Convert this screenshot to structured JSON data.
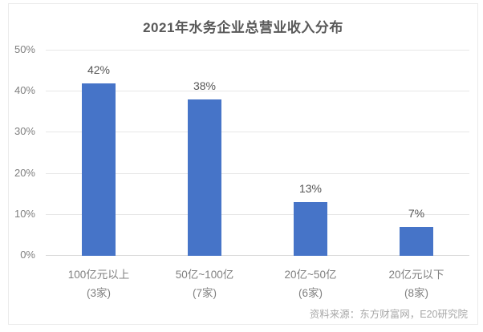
{
  "chart_data": {
    "type": "bar",
    "title": "2021年水务企业总营业收入分布",
    "categories": [
      "100亿元以上",
      "50亿~100亿",
      "20亿~50亿",
      "20亿元以下"
    ],
    "category_sublabels": [
      "(3家)",
      "(7家)",
      "(6家)",
      "(8家)"
    ],
    "values": [
      42,
      38,
      13,
      7
    ],
    "value_labels": [
      "42%",
      "38%",
      "13%",
      "7%"
    ],
    "ylabel": "",
    "xlabel": "",
    "ylim": [
      0,
      50
    ],
    "yticks": [
      0,
      10,
      20,
      30,
      40,
      50
    ],
    "ytick_labels": [
      "0%",
      "10%",
      "20%",
      "30%",
      "40%",
      "50%"
    ],
    "grid": true,
    "legend": "none",
    "bar_color": "#4674c8",
    "source_note": "资料来源：东方财富网，E20研究院"
  }
}
